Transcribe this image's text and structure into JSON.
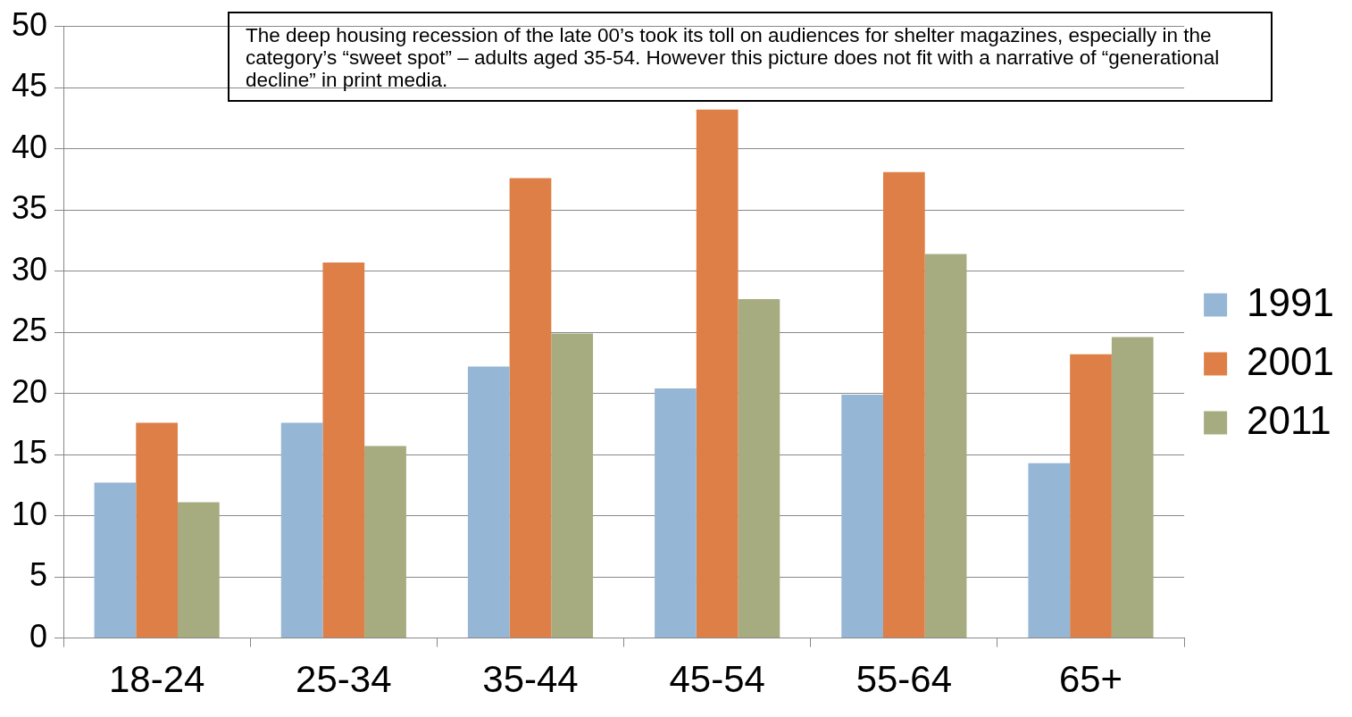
{
  "chart_data": {
    "type": "bar",
    "categories": [
      "18-24",
      "25-34",
      "35-44",
      "45-54",
      "55-64",
      "65+"
    ],
    "series": [
      {
        "name": "1991",
        "color": "#95b6d5",
        "values": [
          12.7,
          17.6,
          22.2,
          20.4,
          19.9,
          14.3
        ]
      },
      {
        "name": "2001",
        "color": "#dd7f47",
        "values": [
          17.6,
          30.7,
          37.6,
          43.2,
          38.1,
          23.2
        ]
      },
      {
        "name": "2011",
        "color": "#a6ab80",
        "values": [
          11.1,
          15.7,
          24.9,
          27.7,
          31.4,
          24.6
        ]
      }
    ],
    "ylim": [
      0,
      50
    ],
    "yticks": [
      0,
      5,
      10,
      15,
      20,
      25,
      30,
      35,
      40,
      45,
      50
    ],
    "grid": "y",
    "legend": "right",
    "annotations": [
      "The deep housing recession of the late 00’s took its toll on audiences for shelter magazines, especially in the category’s “sweet spot” – adults aged 35-54.  However this picture does not fit with a narrative of “generational decline” in print media."
    ]
  }
}
